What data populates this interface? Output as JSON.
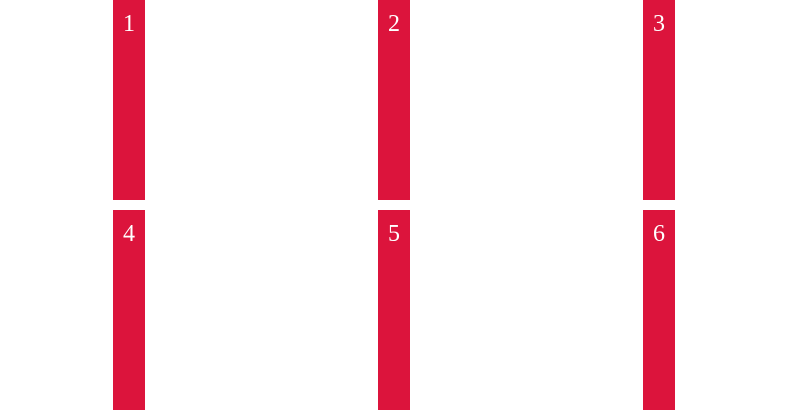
{
  "accent_color": "#DC143C",
  "blocks": [
    {
      "label": "1"
    },
    {
      "label": "2"
    },
    {
      "label": "3"
    },
    {
      "label": "4"
    },
    {
      "label": "5"
    },
    {
      "label": "6"
    }
  ]
}
